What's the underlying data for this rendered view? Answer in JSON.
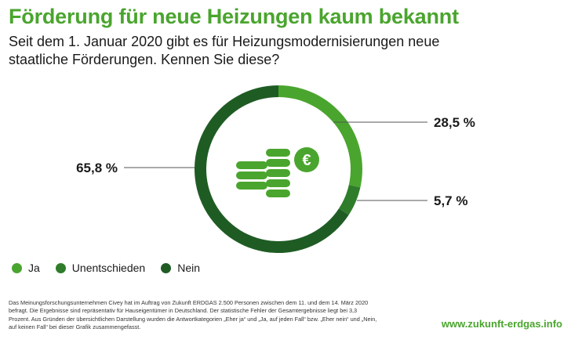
{
  "header": {
    "title": "Förderung für neue Heizungen kaum bekannt",
    "subtitle": "Seit dem 1. Januar 2020 gibt es für Heizungsmodernisierungen neue staatliche Förderungen. Kennen Sie diese?"
  },
  "chart_data": {
    "type": "pie",
    "variant": "donut",
    "slices": [
      {
        "label": "Ja",
        "value": 28.5,
        "value_label": "28,5 %",
        "color": "#4aa52e"
      },
      {
        "label": "Unentschieden",
        "value": 5.7,
        "value_label": "5,7 %",
        "color": "#2f7d2a"
      },
      {
        "label": "Nein",
        "value": 65.8,
        "value_label": "65,8 %",
        "color": "#1f5c24"
      }
    ],
    "legend_position": "bottom-left",
    "center_icon": "stacked-coins-euro-icon"
  },
  "legend": {
    "items": [
      {
        "label": "Ja",
        "color": "#4aa52e"
      },
      {
        "label": "Unentschieden",
        "color": "#2f7d2a"
      },
      {
        "label": "Nein",
        "color": "#1f5c24"
      }
    ]
  },
  "footer": {
    "note": "Das Meinungsforschungsunternehmen Civey hat im Auftrag von Zukunft ERDGAS 2.500 Personen zwischen dem 11. und dem 14. März 2020 befragt. Die Ergebnisse sind repräsentativ für Hauseigentümer in Deutschland. Der statistische Fehler der Gesamtergebnisse liegt bei 3,3 Prozent. Aus Gründen der übersichtlichen Darstellung wurden die Antwortkategorien „Eher ja“ und „Ja, auf jeden Fall“ bzw. „Eher nein“ und „Nein, auf keinen Fall“ bei dieser Grafik zusammengefasst.",
    "url": "www.zukunft-erdgas.info"
  },
  "colors": {
    "accent": "#4aa52e",
    "icon_green": "#4aa52e"
  }
}
